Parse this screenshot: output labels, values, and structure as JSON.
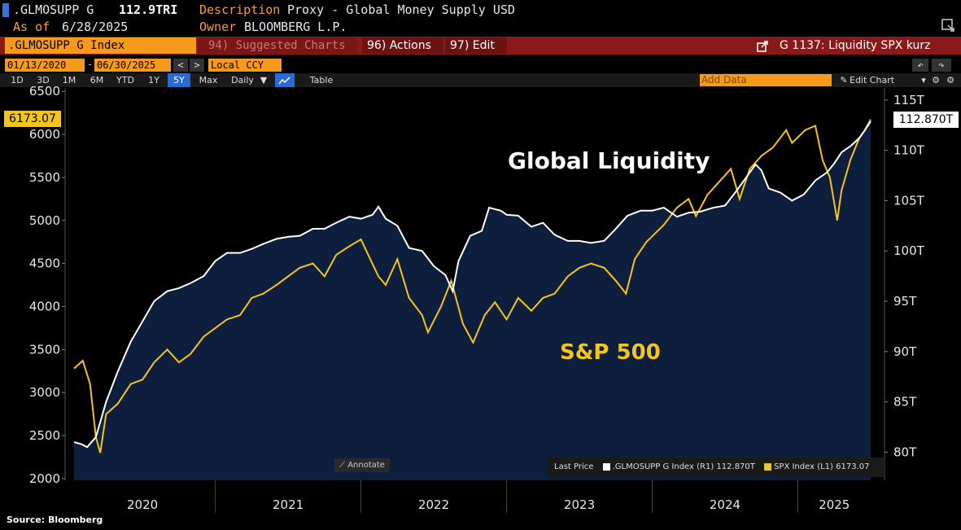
{
  "header": {
    "ticker": ".GLMOSUPP G",
    "last_value": "112.9TRI",
    "description_label": "Description",
    "description": "Proxy - Global Money Supply USD",
    "as_of_label": "As of",
    "as_of": "6/28/2025",
    "owner_label": "Owner",
    "owner": "BLOOMBERG L.P."
  },
  "command_bar": {
    "security": ".GLMOSUPP G Index",
    "suggested": "94) Suggested Charts",
    "actions": "96) Actions",
    "edit": "97) Edit",
    "chart_title": "G 1137: Liquidity SPX kurz"
  },
  "date_bar": {
    "start": "01/13/2020",
    "end": "06/30/2025",
    "currency": "Local CCY"
  },
  "period_bar": {
    "periods": [
      "1D",
      "3D",
      "1M",
      "6M",
      "YTD",
      "1Y",
      "5Y",
      "Max"
    ],
    "selected": "5Y",
    "frequency": "Daily",
    "table": "Table",
    "add_data_placeholder": "Add Data",
    "edit_chart": "Edit Chart"
  },
  "annotations": {
    "global_liquidity": "Global Liquidity",
    "sp500": "S&P 500",
    "annotate_button": "Annotate"
  },
  "legend": {
    "title": "Last Price",
    "entries": [
      {
        "text": ".GLMOSUPP G Index  (R1) 112.870T",
        "color": "#ffffff"
      },
      {
        "text": "SPX Index  (L1) 6173.07",
        "color": "#f5c518"
      }
    ]
  },
  "last_labels": {
    "left": "6173.07",
    "right": "112.870T"
  },
  "source": "Source: Bloomberg",
  "chart_data": {
    "type": "line",
    "x_ticks": [
      "2020",
      "2021",
      "2022",
      "2023",
      "2024",
      "2025"
    ],
    "left_axis": {
      "ticks": [
        2000,
        2500,
        3000,
        3500,
        4000,
        4500,
        5000,
        5500,
        6000,
        6500
      ],
      "range": [
        1980,
        6540
      ]
    },
    "right_axis": {
      "ticks": [
        "80T",
        "85T",
        "90T",
        "95T",
        "100T",
        "105T",
        "110T",
        "115T"
      ],
      "range": [
        77.2,
        116.2
      ]
    },
    "x_range": [
      2020.03,
      2025.5
    ],
    "series": [
      {
        "name": "SPX Index",
        "axis": "left",
        "color": "#f5c518",
        "points": [
          [
            2020.03,
            3280
          ],
          [
            2020.09,
            3370
          ],
          [
            2020.14,
            3100
          ],
          [
            2020.18,
            2480
          ],
          [
            2020.21,
            2300
          ],
          [
            2020.25,
            2750
          ],
          [
            2020.33,
            2870
          ],
          [
            2020.42,
            3100
          ],
          [
            2020.5,
            3150
          ],
          [
            2020.58,
            3350
          ],
          [
            2020.67,
            3500
          ],
          [
            2020.75,
            3350
          ],
          [
            2020.83,
            3450
          ],
          [
            2020.92,
            3650
          ],
          [
            2021.0,
            3750
          ],
          [
            2021.08,
            3850
          ],
          [
            2021.17,
            3900
          ],
          [
            2021.25,
            4100
          ],
          [
            2021.33,
            4150
          ],
          [
            2021.42,
            4250
          ],
          [
            2021.5,
            4350
          ],
          [
            2021.58,
            4450
          ],
          [
            2021.67,
            4500
          ],
          [
            2021.75,
            4350
          ],
          [
            2021.83,
            4600
          ],
          [
            2021.92,
            4700
          ],
          [
            2022.0,
            4780
          ],
          [
            2022.05,
            4600
          ],
          [
            2022.12,
            4350
          ],
          [
            2022.17,
            4250
          ],
          [
            2022.25,
            4550
          ],
          [
            2022.33,
            4100
          ],
          [
            2022.42,
            3900
          ],
          [
            2022.46,
            3700
          ],
          [
            2022.55,
            4000
          ],
          [
            2022.62,
            4300
          ],
          [
            2022.7,
            3800
          ],
          [
            2022.77,
            3580
          ],
          [
            2022.85,
            3900
          ],
          [
            2022.92,
            4050
          ],
          [
            2023.0,
            3850
          ],
          [
            2023.08,
            4100
          ],
          [
            2023.17,
            3950
          ],
          [
            2023.25,
            4100
          ],
          [
            2023.33,
            4150
          ],
          [
            2023.42,
            4350
          ],
          [
            2023.5,
            4450
          ],
          [
            2023.58,
            4500
          ],
          [
            2023.67,
            4450
          ],
          [
            2023.75,
            4300
          ],
          [
            2023.82,
            4150
          ],
          [
            2023.88,
            4550
          ],
          [
            2023.96,
            4750
          ],
          [
            2024.08,
            4950
          ],
          [
            2024.17,
            5150
          ],
          [
            2024.25,
            5250
          ],
          [
            2024.3,
            5050
          ],
          [
            2024.38,
            5300
          ],
          [
            2024.46,
            5450
          ],
          [
            2024.54,
            5600
          ],
          [
            2024.6,
            5250
          ],
          [
            2024.67,
            5600
          ],
          [
            2024.75,
            5750
          ],
          [
            2024.83,
            5850
          ],
          [
            2024.92,
            6050
          ],
          [
            2024.96,
            5900
          ],
          [
            2025.05,
            6050
          ],
          [
            2025.12,
            6100
          ],
          [
            2025.17,
            5700
          ],
          [
            2025.22,
            5500
          ],
          [
            2025.27,
            5000
          ],
          [
            2025.3,
            5350
          ],
          [
            2025.36,
            5700
          ],
          [
            2025.42,
            5950
          ],
          [
            2025.46,
            6050
          ],
          [
            2025.5,
            6173
          ]
        ]
      },
      {
        "name": ".GLMOSUPP G Index",
        "axis": "right",
        "color": "#ffffff",
        "points": [
          [
            2020.03,
            81.0
          ],
          [
            2020.08,
            80.8
          ],
          [
            2020.12,
            80.5
          ],
          [
            2020.18,
            81.5
          ],
          [
            2020.25,
            85.0
          ],
          [
            2020.33,
            88.0
          ],
          [
            2020.42,
            91.0
          ],
          [
            2020.5,
            93.0
          ],
          [
            2020.58,
            95.0
          ],
          [
            2020.67,
            96.0
          ],
          [
            2020.75,
            96.3
          ],
          [
            2020.83,
            96.8
          ],
          [
            2020.92,
            97.5
          ],
          [
            2021.0,
            99.0
          ],
          [
            2021.08,
            99.8
          ],
          [
            2021.17,
            99.8
          ],
          [
            2021.25,
            100.2
          ],
          [
            2021.33,
            100.7
          ],
          [
            2021.42,
            101.2
          ],
          [
            2021.5,
            101.4
          ],
          [
            2021.58,
            101.5
          ],
          [
            2021.67,
            102.2
          ],
          [
            2021.75,
            102.2
          ],
          [
            2021.83,
            102.8
          ],
          [
            2021.92,
            103.4
          ],
          [
            2022.0,
            103.2
          ],
          [
            2022.08,
            103.6
          ],
          [
            2022.12,
            104.4
          ],
          [
            2022.17,
            103.2
          ],
          [
            2022.25,
            102.5
          ],
          [
            2022.33,
            100.3
          ],
          [
            2022.42,
            100.0
          ],
          [
            2022.5,
            98.5
          ],
          [
            2022.58,
            97.6
          ],
          [
            2022.63,
            96.0
          ],
          [
            2022.67,
            99.0
          ],
          [
            2022.75,
            101.5
          ],
          [
            2022.83,
            102.0
          ],
          [
            2022.88,
            104.3
          ],
          [
            2022.96,
            104.0
          ],
          [
            2023.0,
            103.6
          ],
          [
            2023.08,
            103.5
          ],
          [
            2023.17,
            102.4
          ],
          [
            2023.25,
            102.8
          ],
          [
            2023.33,
            101.6
          ],
          [
            2023.42,
            101.0
          ],
          [
            2023.5,
            101.0
          ],
          [
            2023.58,
            100.8
          ],
          [
            2023.67,
            101.0
          ],
          [
            2023.75,
            102.2
          ],
          [
            2023.83,
            103.5
          ],
          [
            2023.92,
            104.0
          ],
          [
            2024.0,
            104.0
          ],
          [
            2024.08,
            104.3
          ],
          [
            2024.17,
            103.4
          ],
          [
            2024.25,
            103.8
          ],
          [
            2024.33,
            103.9
          ],
          [
            2024.42,
            104.3
          ],
          [
            2024.5,
            104.5
          ],
          [
            2024.58,
            106.0
          ],
          [
            2024.67,
            107.8
          ],
          [
            2024.71,
            108.6
          ],
          [
            2024.75,
            108.0
          ],
          [
            2024.8,
            106.2
          ],
          [
            2024.88,
            105.8
          ],
          [
            2024.96,
            105.0
          ],
          [
            2025.04,
            105.6
          ],
          [
            2025.12,
            107.0
          ],
          [
            2025.2,
            107.8
          ],
          [
            2025.25,
            108.7
          ],
          [
            2025.3,
            109.8
          ],
          [
            2025.36,
            110.4
          ],
          [
            2025.42,
            111.2
          ],
          [
            2025.46,
            112.0
          ],
          [
            2025.5,
            112.87
          ]
        ]
      }
    ]
  }
}
